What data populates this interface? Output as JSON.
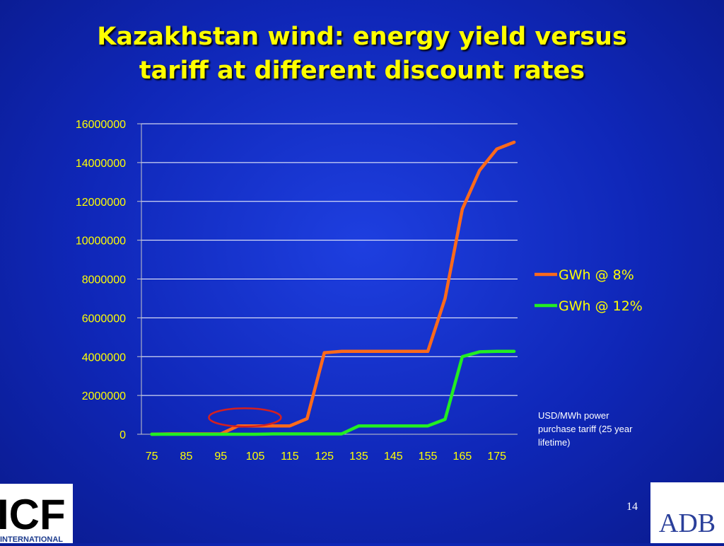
{
  "slide": {
    "title_line1": "Kazakhstan wind: energy yield versus",
    "title_line2": "tariff at different discount rates",
    "note": "USD/MWh power purchase tariff (25 year lifetime)",
    "page_number": "14"
  },
  "logos": {
    "icf_text": "ICF",
    "icf_subtext": "INTERNATIONAL",
    "adb_text": "ADB"
  },
  "colors": {
    "background": "#0f27b8",
    "title": "#ffff00",
    "axis_text": "#ffff00",
    "gridline": "#ffffff",
    "highlight_circle": "#d42020"
  },
  "chart_data": {
    "type": "line",
    "xlabel": "",
    "ylabel": "",
    "ylim": [
      0,
      16000000
    ],
    "yticks": [
      0,
      2000000,
      4000000,
      6000000,
      8000000,
      10000000,
      12000000,
      14000000,
      16000000
    ],
    "ytick_labels": [
      "0",
      "2000000",
      "4000000",
      "6000000",
      "8000000",
      "10000000",
      "12000000",
      "14000000",
      "16000000"
    ],
    "xtick_labels": [
      "75",
      "85",
      "95",
      "105",
      "115",
      "125",
      "135",
      "145",
      "155",
      "165",
      "175"
    ],
    "grid": true,
    "legend_position": "right",
    "x": [
      75,
      80,
      85,
      90,
      95,
      100,
      105,
      110,
      115,
      120,
      125,
      130,
      135,
      140,
      145,
      150,
      155,
      160,
      165,
      170,
      175,
      180
    ],
    "series": [
      {
        "name": "GWh @ 8%",
        "color": "#ff6a1a",
        "values": [
          0,
          20000,
          20000,
          20000,
          20000,
          430000,
          430000,
          430000,
          430000,
          800000,
          4200000,
          4270000,
          4270000,
          4270000,
          4270000,
          4270000,
          4270000,
          7000000,
          11600000,
          13600000,
          14700000,
          15050000
        ]
      },
      {
        "name": "GWh @ 12%",
        "color": "#22ee22",
        "values": [
          0,
          0,
          0,
          0,
          0,
          0,
          0,
          20000,
          20000,
          20000,
          20000,
          20000,
          430000,
          430000,
          430000,
          430000,
          430000,
          770000,
          4000000,
          4250000,
          4270000,
          4270000
        ]
      }
    ],
    "annotation": {
      "type": "ellipse",
      "x": 102,
      "y": 430000,
      "color": "#d42020"
    }
  }
}
